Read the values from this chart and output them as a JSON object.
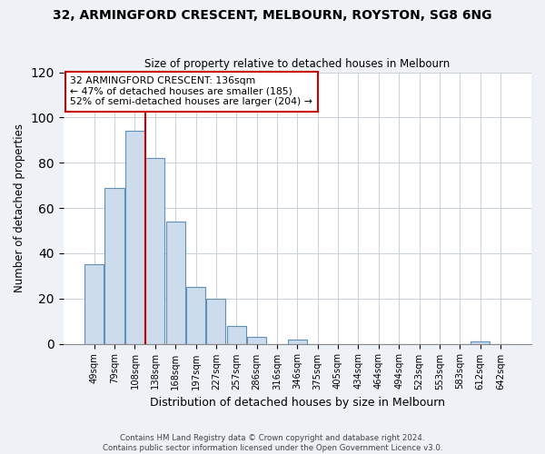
{
  "title": "32, ARMINGFORD CRESCENT, MELBOURN, ROYSTON, SG8 6NG",
  "subtitle": "Size of property relative to detached houses in Melbourn",
  "xlabel": "Distribution of detached houses by size in Melbourn",
  "ylabel": "Number of detached properties",
  "bar_color": "#ccdcec",
  "bar_edge_color": "#6090b8",
  "bin_labels": [
    "49sqm",
    "79sqm",
    "108sqm",
    "138sqm",
    "168sqm",
    "197sqm",
    "227sqm",
    "257sqm",
    "286sqm",
    "316sqm",
    "346sqm",
    "375sqm",
    "405sqm",
    "434sqm",
    "464sqm",
    "494sqm",
    "523sqm",
    "553sqm",
    "583sqm",
    "612sqm",
    "642sqm"
  ],
  "bar_heights": [
    35,
    69,
    94,
    82,
    54,
    25,
    20,
    8,
    3,
    0,
    2,
    0,
    0,
    0,
    0,
    0,
    0,
    0,
    0,
    1,
    0
  ],
  "ylim": [
    0,
    120
  ],
  "yticks": [
    0,
    20,
    40,
    60,
    80,
    100,
    120
  ],
  "vline_x": 2.5,
  "vline_color": "#cc0000",
  "annotation_text": "32 ARMINGFORD CRESCENT: 136sqm\n← 47% of detached houses are smaller (185)\n52% of semi-detached houses are larger (204) →",
  "annotation_box_color": "#ffffff",
  "annotation_box_edge_color": "#cc0000",
  "footer1": "Contains HM Land Registry data © Crown copyright and database right 2024.",
  "footer2": "Contains public sector information licensed under the Open Government Licence v3.0.",
  "background_color": "#eef2f6",
  "plot_bg_color": "#ffffff",
  "grid_color": "#c8d0da"
}
